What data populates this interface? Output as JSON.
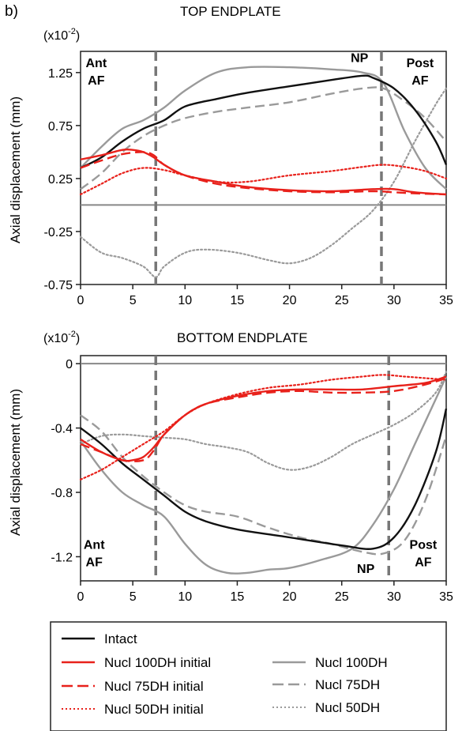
{
  "panel_label": "b)",
  "colors": {
    "intact": "#111111",
    "red": "#e8211b",
    "gray": "#9a9a9a",
    "dash_marker": "#777777",
    "zero_line": "#888888"
  },
  "legend": {
    "items": [
      {
        "key": "intact",
        "label": "Intact",
        "color": "#111111",
        "style": "solid"
      },
      {
        "key": "n100i",
        "label": "Nucl 100DH initial",
        "color": "#e8211b",
        "style": "solid"
      },
      {
        "key": "n75i",
        "label": "Nucl 75DH initial",
        "color": "#e8211b",
        "style": "dashed"
      },
      {
        "key": "n50i",
        "label": "Nucl 50DH initial",
        "color": "#e8211b",
        "style": "dotted"
      },
      {
        "key": "n100",
        "label": "Nucl 100DH",
        "color": "#9a9a9a",
        "style": "solid"
      },
      {
        "key": "n75",
        "label": "Nucl 75DH",
        "color": "#9a9a9a",
        "style": "dashed"
      },
      {
        "key": "n50",
        "label": "Nucl 50DH",
        "color": "#9a9a9a",
        "style": "dotted"
      }
    ]
  },
  "chart_data": [
    {
      "type": "line",
      "title": "TOP ENDPLATE",
      "unit_prefix": "(x10",
      "unit_exp": "-2",
      "unit_suffix": ")",
      "ylabel": "Axial displacement (mm)",
      "xlabel": "",
      "xlim": [
        0,
        35
      ],
      "ylim": [
        -0.75,
        1.45
      ],
      "xticks": [
        0,
        5,
        10,
        15,
        20,
        25,
        30,
        35
      ],
      "yticks": [
        -0.75,
        -0.25,
        0.25,
        0.75,
        1.25
      ],
      "ytick_labels": [
        "-0.75",
        "-0.25",
        "0.25",
        "0.75",
        "1.25"
      ],
      "zero_line": 0,
      "vlines": [
        7.2,
        28.8
      ],
      "region_labels": [
        {
          "lines": [
            "Ant",
            "AF"
          ],
          "x": 1.5,
          "y": 1.3,
          "anchor": "middle"
        },
        {
          "lines": [
            "NP"
          ],
          "x": 26.7,
          "y": 1.35,
          "anchor": "middle"
        },
        {
          "lines": [
            "Post",
            "AF"
          ],
          "x": 32.5,
          "y": 1.3,
          "anchor": "middle"
        }
      ],
      "series": [
        {
          "key": "intact",
          "x": [
            0,
            2,
            4,
            6,
            8,
            10,
            13,
            16,
            20,
            24,
            27,
            28,
            30,
            32,
            34,
            35
          ],
          "y": [
            0.35,
            0.45,
            0.6,
            0.72,
            0.8,
            0.93,
            1.0,
            1.06,
            1.12,
            1.18,
            1.22,
            1.2,
            1.1,
            0.9,
            0.6,
            0.38
          ]
        },
        {
          "key": "n100",
          "x": [
            0,
            2,
            4,
            6,
            8,
            10,
            13,
            16,
            20,
            24,
            27,
            29,
            31,
            33,
            35
          ],
          "y": [
            0.35,
            0.55,
            0.72,
            0.8,
            0.92,
            1.08,
            1.25,
            1.3,
            1.3,
            1.28,
            1.25,
            1.15,
            0.7,
            0.35,
            0.15
          ]
        },
        {
          "key": "n75",
          "x": [
            0,
            2,
            4,
            6,
            8,
            10,
            13,
            16,
            20,
            24,
            27,
            29,
            31,
            33,
            35
          ],
          "y": [
            0.15,
            0.3,
            0.5,
            0.65,
            0.75,
            0.82,
            0.88,
            0.92,
            0.97,
            1.05,
            1.1,
            1.1,
            0.98,
            0.82,
            0.6
          ]
        },
        {
          "key": "n50",
          "x": [
            0,
            2,
            4,
            6,
            7.2,
            8,
            10,
            12,
            15,
            18,
            20,
            22,
            24,
            26,
            28,
            30,
            32,
            34,
            35
          ],
          "y": [
            -0.3,
            -0.45,
            -0.5,
            -0.58,
            -0.68,
            -0.58,
            -0.45,
            -0.42,
            -0.45,
            -0.52,
            -0.55,
            -0.5,
            -0.38,
            -0.22,
            -0.05,
            0.22,
            0.6,
            0.95,
            1.1
          ]
        },
        {
          "key": "n100i",
          "x": [
            0,
            2,
            4,
            5,
            6,
            7,
            8,
            10,
            13,
            16,
            20,
            24,
            28,
            30,
            32,
            35
          ],
          "y": [
            0.43,
            0.47,
            0.52,
            0.52,
            0.5,
            0.45,
            0.38,
            0.28,
            0.22,
            0.17,
            0.14,
            0.13,
            0.15,
            0.15,
            0.12,
            0.1
          ]
        },
        {
          "key": "n75i",
          "x": [
            0,
            2,
            4,
            6,
            7,
            8,
            10,
            13,
            16,
            20,
            24,
            28,
            30,
            32,
            35
          ],
          "y": [
            0.35,
            0.42,
            0.48,
            0.5,
            0.47,
            0.38,
            0.28,
            0.2,
            0.16,
            0.13,
            0.12,
            0.13,
            0.12,
            0.11,
            0.1
          ]
        },
        {
          "key": "n50i",
          "x": [
            0,
            2,
            4,
            6,
            8,
            10,
            13,
            16,
            20,
            24,
            27,
            29,
            31,
            33,
            35
          ],
          "y": [
            0.1,
            0.2,
            0.3,
            0.35,
            0.33,
            0.28,
            0.22,
            0.22,
            0.28,
            0.32,
            0.36,
            0.38,
            0.36,
            0.32,
            0.25
          ]
        }
      ]
    },
    {
      "type": "line",
      "title": "BOTTOM ENDPLATE",
      "unit_prefix": "(x10",
      "unit_exp": "-2",
      "unit_suffix": ")",
      "ylabel": "Axial displacement (mm)",
      "xlabel": "",
      "xlim": [
        0,
        35
      ],
      "ylim": [
        -1.35,
        0.05
      ],
      "xticks": [
        0,
        5,
        10,
        15,
        20,
        25,
        30,
        35
      ],
      "yticks": [
        -1.2,
        -0.8,
        -0.4,
        0
      ],
      "ytick_labels": [
        "-1.2",
        "-0.8",
        "-0.4",
        "0"
      ],
      "zero_line": 0,
      "vlines": [
        7.2,
        29.5
      ],
      "region_labels": [
        {
          "lines": [
            "Ant",
            "AF"
          ],
          "x": 1.3,
          "y": -1.15,
          "anchor": "middle"
        },
        {
          "lines": [
            "NP"
          ],
          "x": 27.3,
          "y": -1.3,
          "anchor": "middle"
        },
        {
          "lines": [
            "Post",
            "AF"
          ],
          "x": 32.8,
          "y": -1.15,
          "anchor": "middle"
        }
      ],
      "series": [
        {
          "key": "intact",
          "x": [
            0,
            2,
            4,
            6,
            8,
            10,
            12,
            15,
            20,
            25,
            28,
            30,
            32,
            34,
            35
          ],
          "y": [
            -0.4,
            -0.5,
            -0.62,
            -0.72,
            -0.82,
            -0.92,
            -0.98,
            -1.03,
            -1.08,
            -1.13,
            -1.15,
            -1.08,
            -0.88,
            -0.55,
            -0.28
          ]
        },
        {
          "key": "n100",
          "x": [
            0,
            2,
            4,
            6,
            8,
            10,
            12,
            14,
            16,
            18,
            20,
            23,
            26,
            28,
            30,
            32,
            34,
            35
          ],
          "y": [
            -0.48,
            -0.66,
            -0.8,
            -0.88,
            -0.95,
            -1.12,
            -1.25,
            -1.3,
            -1.3,
            -1.28,
            -1.27,
            -1.22,
            -1.15,
            -1.0,
            -0.78,
            -0.5,
            -0.22,
            -0.08
          ]
        },
        {
          "key": "n75",
          "x": [
            0,
            2,
            4,
            6,
            8,
            10,
            12,
            15,
            18,
            21,
            24,
            27,
            29,
            31,
            33,
            35
          ],
          "y": [
            -0.32,
            -0.42,
            -0.58,
            -0.7,
            -0.8,
            -0.88,
            -0.92,
            -0.95,
            -1.02,
            -1.08,
            -1.12,
            -1.17,
            -1.18,
            -1.1,
            -0.85,
            -0.45
          ]
        },
        {
          "key": "n50",
          "x": [
            0,
            2,
            4,
            6,
            8,
            10,
            12,
            14,
            16,
            18,
            20,
            22,
            24,
            26,
            28,
            30,
            32,
            34,
            35
          ],
          "y": [
            -0.5,
            -0.45,
            -0.44,
            -0.45,
            -0.46,
            -0.47,
            -0.5,
            -0.52,
            -0.55,
            -0.62,
            -0.66,
            -0.64,
            -0.58,
            -0.5,
            -0.44,
            -0.38,
            -0.3,
            -0.18,
            -0.05
          ]
        },
        {
          "key": "n100i",
          "x": [
            0,
            2,
            4,
            5,
            6,
            7,
            8,
            10,
            12,
            15,
            18,
            21,
            24,
            27,
            30,
            33,
            35
          ],
          "y": [
            -0.47,
            -0.55,
            -0.6,
            -0.6,
            -0.58,
            -0.52,
            -0.44,
            -0.32,
            -0.25,
            -0.2,
            -0.17,
            -0.16,
            -0.16,
            -0.16,
            -0.14,
            -0.12,
            -0.08
          ]
        },
        {
          "key": "n75i",
          "x": [
            0,
            2,
            4,
            6,
            7,
            8,
            10,
            12,
            15,
            18,
            21,
            24,
            27,
            30,
            33,
            35
          ],
          "y": [
            -0.5,
            -0.55,
            -0.6,
            -0.6,
            -0.54,
            -0.44,
            -0.32,
            -0.25,
            -0.21,
            -0.18,
            -0.17,
            -0.18,
            -0.18,
            -0.17,
            -0.13,
            -0.09
          ]
        },
        {
          "key": "n50i",
          "x": [
            0,
            2,
            4,
            6,
            8,
            10,
            12,
            15,
            18,
            21,
            24,
            27,
            29,
            31,
            33,
            35
          ],
          "y": [
            -0.72,
            -0.66,
            -0.58,
            -0.5,
            -0.42,
            -0.32,
            -0.25,
            -0.19,
            -0.15,
            -0.13,
            -0.1,
            -0.08,
            -0.07,
            -0.08,
            -0.09,
            -0.1
          ]
        }
      ]
    }
  ]
}
